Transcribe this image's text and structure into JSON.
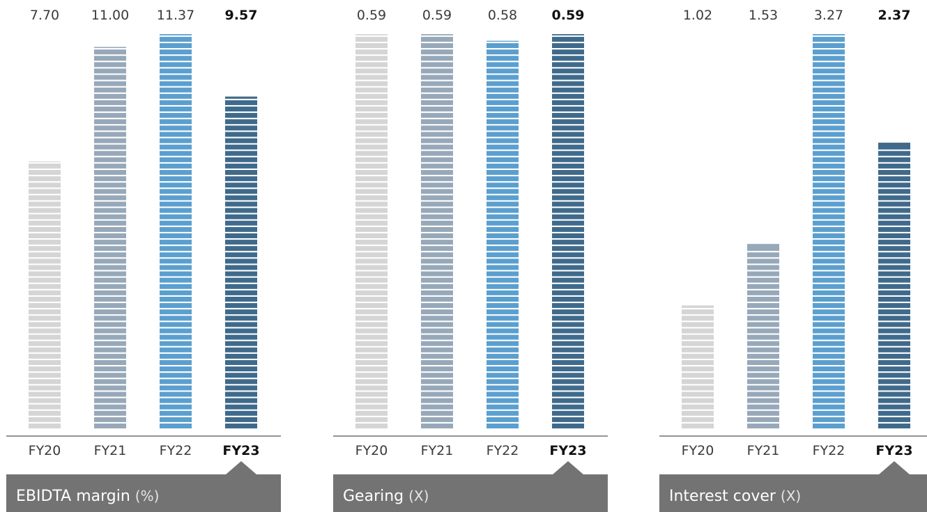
{
  "chart_data": [
    {
      "type": "bar",
      "title": "EBIDTA margin",
      "unit": "(%)",
      "categories": [
        "FY20",
        "FY21",
        "FY22",
        "FY23"
      ],
      "values": [
        7.7,
        11.0,
        11.37,
        9.57
      ],
      "value_labels": [
        "7.70",
        "11.00",
        "11.37",
        "9.57"
      ],
      "highlight_index": 3,
      "ylim": [
        0,
        11.37
      ],
      "grid": false,
      "colors": [
        "#d5d5d5",
        "#97a8b9",
        "#5b9fcf",
        "#3f6a8b"
      ]
    },
    {
      "type": "bar",
      "title": "Gearing",
      "unit": "(X)",
      "categories": [
        "FY20",
        "FY21",
        "FY22",
        "FY23"
      ],
      "values": [
        0.59,
        0.59,
        0.58,
        0.59
      ],
      "value_labels": [
        "0.59",
        "0.59",
        "0.58",
        "0.59"
      ],
      "highlight_index": 3,
      "ylim": [
        0,
        0.59
      ],
      "grid": false,
      "colors": [
        "#d5d5d5",
        "#97a8b9",
        "#5b9fcf",
        "#3f6a8b"
      ]
    },
    {
      "type": "bar",
      "title": "Interest cover",
      "unit": "(X)",
      "categories": [
        "FY20",
        "FY21",
        "FY22",
        "FY23"
      ],
      "values": [
        1.02,
        1.53,
        3.27,
        2.37
      ],
      "value_labels": [
        "1.02",
        "1.53",
        "3.27",
        "2.37"
      ],
      "highlight_index": 3,
      "ylim": [
        0,
        3.27
      ],
      "grid": false,
      "colors": [
        "#d5d5d5",
        "#97a8b9",
        "#5b9fcf",
        "#3f6a8b"
      ]
    }
  ],
  "style": {
    "axis_color": "#555555",
    "panel_color": "#737373"
  }
}
